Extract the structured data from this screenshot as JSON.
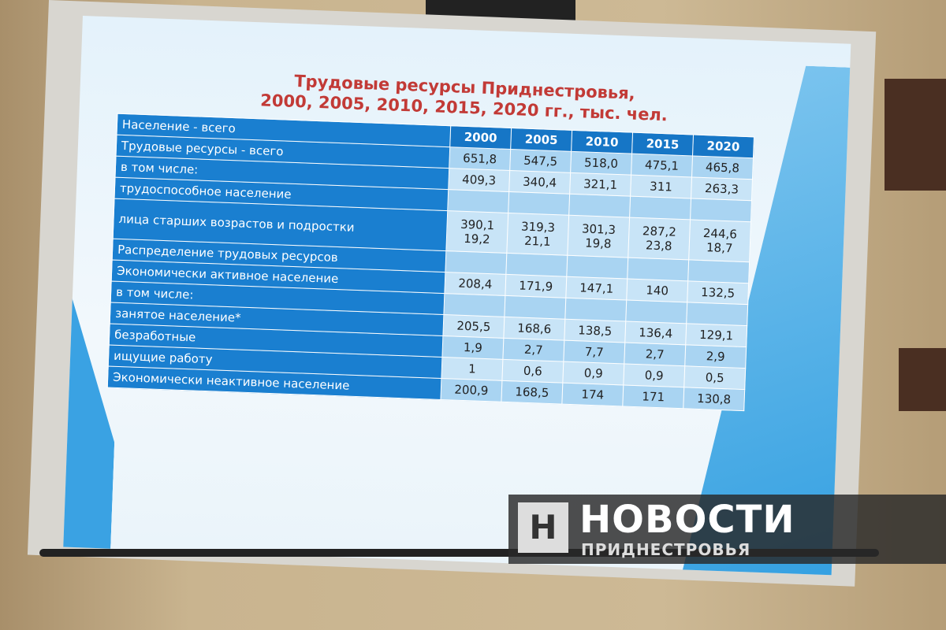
{
  "slide": {
    "title": "Трудовые ресурсы Приднестровья,",
    "subtitle": "2000, 2005, 2010, 2015, 2020 гг., тыс. чел.",
    "header_label": "Население - всего",
    "years": [
      "2000",
      "2005",
      "2010",
      "2015",
      "2020"
    ],
    "rows": [
      {
        "label": "Трудовые ресурсы - всего",
        "values": [
          "651,8",
          "547,5",
          "518,0",
          "475,1",
          "465,8"
        ]
      },
      {
        "label": "в том числе:",
        "values": [
          "409,3",
          "340,4",
          "321,1",
          "311",
          "263,3"
        ]
      },
      {
        "label": "трудоспособное население",
        "values": [
          "",
          "",
          "",
          "",
          ""
        ]
      },
      {
        "label": "лица старших возрастов и подростки",
        "values": [
          "390,1",
          "319,3",
          "301,3",
          "287,2",
          "244,6"
        ],
        "values2": [
          "19,2",
          "21,1",
          "19,8",
          "23,8",
          "18,7"
        ]
      },
      {
        "label": "Распределение трудовых ресурсов",
        "values": [
          "",
          "",
          "",
          "",
          ""
        ]
      },
      {
        "label": "Экономически активное население",
        "values": [
          "208,4",
          "171,9",
          "147,1",
          "140",
          "132,5"
        ]
      },
      {
        "label": "в том числе:",
        "values": [
          "",
          "",
          "",
          "",
          ""
        ]
      },
      {
        "label": "занятое население*",
        "values": [
          "205,5",
          "168,6",
          "138,5",
          "136,4",
          "129,1"
        ]
      },
      {
        "label": "безработные",
        "values": [
          "1,9",
          "2,7",
          "7,7",
          "2,7",
          "2,9"
        ]
      },
      {
        "label": "ищущие работу",
        "values": [
          "1",
          "0,6",
          "0,9",
          "0,9",
          "0,5"
        ]
      },
      {
        "label": "Экономически неактивное население",
        "values": [
          "200,9",
          "168,5",
          "174",
          "171",
          "130,8"
        ]
      }
    ]
  },
  "watermark": {
    "mark": "Н",
    "line1": "НОВОСТИ",
    "line2": "ПРИДНЕСТРОВЬЯ"
  }
}
